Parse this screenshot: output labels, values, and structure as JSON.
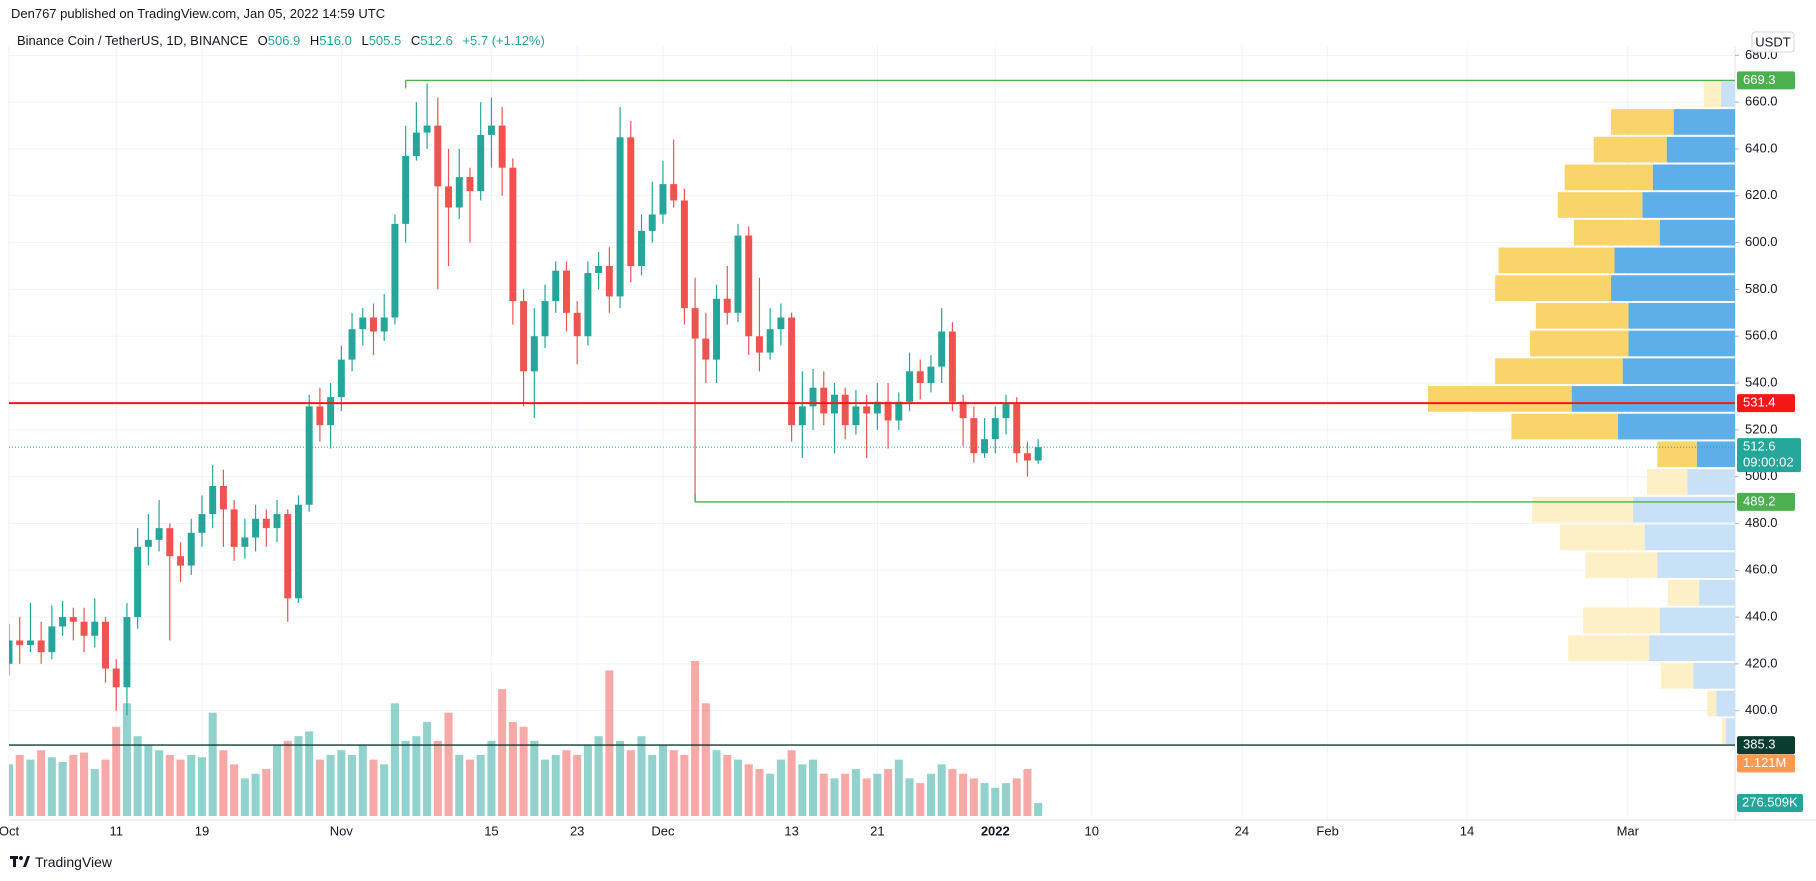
{
  "header": {
    "published": "Den767 published on TradingView.com, Jan 05, 2022 14:59 UTC"
  },
  "legend": {
    "symbol": "Binance Coin / TetherUS, 1D, BINANCE",
    "fields": [
      {
        "key": "O",
        "value": "506.9"
      },
      {
        "key": "H",
        "value": "516.0"
      },
      {
        "key": "L",
        "value": "505.5"
      },
      {
        "key": "C",
        "value": "512.6"
      }
    ],
    "change": "+5.7 (+1.12%)"
  },
  "footer": {
    "brand": "TradingView"
  },
  "chart_data": {
    "type": "candlestick",
    "currency": "USDT",
    "countdown": "09:00:02",
    "up_color": "#26a69a",
    "down_color": "#ef5350",
    "volume_up_color": "rgba(38,166,154,0.5)",
    "volume_down_color": "rgba(239,83,80,0.5)",
    "grid": true,
    "xlim": [
      "2021-10-01",
      "2022-03-11"
    ],
    "xticks": [
      {
        "value": "2021-10-01",
        "label": "Oct"
      },
      {
        "value": "2021-10-11",
        "label": "11"
      },
      {
        "value": "2021-10-19",
        "label": "19"
      },
      {
        "value": "2021-11-01",
        "label": "Nov"
      },
      {
        "value": "2021-11-15",
        "label": "15"
      },
      {
        "value": "2021-11-23",
        "label": "23"
      },
      {
        "value": "2021-12-01",
        "label": "Dec"
      },
      {
        "value": "2021-12-13",
        "label": "13"
      },
      {
        "value": "2021-12-21",
        "label": "21"
      },
      {
        "value": "2022-01-01",
        "label": "2022"
      },
      {
        "value": "2022-01-10",
        "label": "10"
      },
      {
        "value": "2022-01-24",
        "label": "24"
      },
      {
        "value": "2022-02-01",
        "label": "Feb"
      },
      {
        "value": "2022-02-14",
        "label": "14"
      },
      {
        "value": "2022-03-01",
        "label": "Mar"
      }
    ],
    "ylim": [
      355,
      684
    ],
    "yticks": [
      {
        "value": 680,
        "label": "680.0"
      },
      {
        "value": 660,
        "label": "660.0"
      },
      {
        "value": 640,
        "label": "640.0"
      },
      {
        "value": 620,
        "label": "620.0"
      },
      {
        "value": 600,
        "label": "600.0"
      },
      {
        "value": 580,
        "label": "580.0"
      },
      {
        "value": 560,
        "label": "560.0"
      },
      {
        "value": 540,
        "label": "540.0"
      },
      {
        "value": 520,
        "label": "520.0"
      },
      {
        "value": 500,
        "label": "500.0"
      },
      {
        "value": 480,
        "label": "480.0"
      },
      {
        "value": 460,
        "label": "460.0"
      },
      {
        "value": 440,
        "label": "440.0"
      },
      {
        "value": 420,
        "label": "420.0"
      },
      {
        "value": 400,
        "label": "400.0"
      }
    ],
    "x": [
      "2021-10-01",
      "2021-10-02",
      "2021-10-03",
      "2021-10-04",
      "2021-10-05",
      "2021-10-06",
      "2021-10-07",
      "2021-10-08",
      "2021-10-09",
      "2021-10-10",
      "2021-10-11",
      "2021-10-12",
      "2021-10-13",
      "2021-10-14",
      "2021-10-15",
      "2021-10-16",
      "2021-10-17",
      "2021-10-18",
      "2021-10-19",
      "2021-10-20",
      "2021-10-21",
      "2021-10-22",
      "2021-10-23",
      "2021-10-24",
      "2021-10-25",
      "2021-10-26",
      "2021-10-27",
      "2021-10-28",
      "2021-10-29",
      "2021-10-30",
      "2021-10-31",
      "2021-11-01",
      "2021-11-02",
      "2021-11-03",
      "2021-11-04",
      "2021-11-05",
      "2021-11-06",
      "2021-11-07",
      "2021-11-08",
      "2021-11-09",
      "2021-11-10",
      "2021-11-11",
      "2021-11-12",
      "2021-11-13",
      "2021-11-14",
      "2021-11-15",
      "2021-11-16",
      "2021-11-17",
      "2021-11-18",
      "2021-11-19",
      "2021-11-20",
      "2021-11-21",
      "2021-11-22",
      "2021-11-23",
      "2021-11-24",
      "2021-11-25",
      "2021-11-26",
      "2021-11-27",
      "2021-11-28",
      "2021-11-29",
      "2021-11-30",
      "2021-12-01",
      "2021-12-02",
      "2021-12-03",
      "2021-12-04",
      "2021-12-05",
      "2021-12-06",
      "2021-12-07",
      "2021-12-08",
      "2021-12-09",
      "2021-12-10",
      "2021-12-11",
      "2021-12-12",
      "2021-12-13",
      "2021-12-14",
      "2021-12-15",
      "2021-12-16",
      "2021-12-17",
      "2021-12-18",
      "2021-12-19",
      "2021-12-20",
      "2021-12-21",
      "2021-12-22",
      "2021-12-23",
      "2021-12-24",
      "2021-12-25",
      "2021-12-26",
      "2021-12-27",
      "2021-12-28",
      "2021-12-29",
      "2021-12-30",
      "2021-12-31",
      "2022-01-01",
      "2022-01-02",
      "2022-01-03",
      "2022-01-04",
      "2022-01-05"
    ],
    "open": [
      420,
      430,
      428,
      430,
      425,
      436,
      440,
      438,
      432,
      438,
      418,
      410,
      440,
      470,
      473,
      478,
      466,
      462,
      476,
      484,
      496,
      486,
      470,
      474,
      482,
      478,
      484,
      448,
      488,
      530,
      522,
      534,
      550,
      563,
      568,
      562,
      568,
      608,
      637,
      647,
      650,
      624,
      615,
      628,
      622,
      646,
      650,
      632,
      575,
      545,
      560,
      575,
      588,
      570,
      560,
      587,
      590,
      577,
      645,
      590,
      605,
      612,
      625,
      618,
      572,
      559,
      550,
      576,
      570,
      603,
      560,
      553,
      563,
      568,
      522,
      530,
      538,
      527,
      535,
      522,
      530,
      527,
      532,
      524,
      532,
      545,
      540,
      547,
      562,
      532,
      525,
      510,
      516,
      525,
      531,
      510,
      506.9
    ],
    "high": [
      437,
      440,
      446,
      438,
      445,
      447,
      444,
      444,
      448,
      440,
      422,
      446,
      478,
      484,
      490,
      480,
      472,
      482,
      492,
      505,
      503,
      490,
      482,
      488,
      486,
      490,
      486,
      492,
      535,
      538,
      540,
      556,
      570,
      572,
      574,
      578,
      612,
      650,
      660,
      668,
      662,
      640,
      640,
      632,
      660,
      662,
      658,
      636,
      580,
      572,
      582,
      592,
      592,
      575,
      592,
      596,
      598,
      658,
      652,
      612,
      626,
      635,
      644,
      623,
      585,
      570,
      582,
      590,
      608,
      607,
      585,
      572,
      574,
      570,
      545,
      546,
      545,
      540,
      538,
      537,
      535,
      540,
      540,
      536,
      553,
      550,
      552,
      572,
      566,
      535,
      530,
      525,
      530,
      535,
      534,
      515,
      516
    ],
    "low": [
      415,
      420,
      425,
      420,
      422,
      432,
      430,
      425,
      427,
      412,
      400,
      398,
      435,
      462,
      468,
      430,
      455,
      458,
      470,
      478,
      470,
      464,
      465,
      468,
      470,
      472,
      438,
      446,
      485,
      515,
      512,
      528,
      545,
      556,
      552,
      558,
      565,
      600,
      635,
      640,
      580,
      590,
      610,
      600,
      618,
      632,
      620,
      565,
      530,
      525,
      555,
      570,
      562,
      548,
      556,
      580,
      570,
      572,
      583,
      586,
      600,
      608,
      615,
      565,
      489.2,
      540,
      540,
      565,
      566,
      552,
      545,
      550,
      556,
      515,
      508,
      520,
      522,
      510,
      516,
      518,
      508,
      520,
      512,
      520,
      528,
      533,
      536,
      540,
      528,
      513,
      506,
      508,
      510,
      518,
      506,
      500,
      505.5
    ],
    "close": [
      430,
      428,
      430,
      425,
      436,
      440,
      438,
      432,
      438,
      418,
      410,
      440,
      470,
      473,
      478,
      466,
      462,
      476,
      484,
      496,
      486,
      470,
      474,
      482,
      478,
      484,
      448,
      488,
      530,
      522,
      534,
      550,
      563,
      568,
      562,
      568,
      608,
      637,
      647,
      650,
      624,
      615,
      628,
      622,
      646,
      650,
      632,
      575,
      545,
      560,
      575,
      588,
      570,
      560,
      587,
      590,
      577,
      645,
      590,
      605,
      612,
      625,
      618,
      572,
      559,
      550,
      576,
      570,
      603,
      560,
      553,
      563,
      568,
      522,
      530,
      538,
      527,
      535,
      522,
      530,
      527,
      532,
      524,
      532,
      545,
      540,
      547,
      562,
      532,
      525,
      510,
      516,
      525,
      531,
      510,
      506.9,
      512.6
    ],
    "volume": [
      1100000,
      1300000,
      1200000,
      1400000,
      1250000,
      1150000,
      1300000,
      1350000,
      1000000,
      1200000,
      1900000,
      2400000,
      1700000,
      1500000,
      1400000,
      1300000,
      1200000,
      1300000,
      1250000,
      2200000,
      1400000,
      1100000,
      800000,
      900000,
      1000000,
      1500000,
      1600000,
      1700000,
      1800000,
      1200000,
      1300000,
      1400000,
      1300000,
      1500000,
      1200000,
      1100000,
      2400000,
      1600000,
      1700000,
      2000000,
      1600000,
      2200000,
      1300000,
      1200000,
      1300000,
      1600000,
      2700000,
      2000000,
      1900000,
      1600000,
      1200000,
      1300000,
      1400000,
      1300000,
      1500000,
      1700000,
      3100000,
      1600000,
      1400000,
      1700000,
      1300000,
      1500000,
      1400000,
      1300000,
      3300000,
      2400000,
      1400000,
      1300000,
      1200000,
      1100000,
      1000000,
      900000,
      1200000,
      1400000,
      1100000,
      1200000,
      900000,
      800000,
      900000,
      1000000,
      800000,
      900000,
      1000000,
      1200000,
      800000,
      700000,
      900000,
      1100000,
      1000000,
      900000,
      800000,
      700000,
      600000,
      700000,
      800000,
      1000000,
      276509
    ],
    "last_volume_label": "276.509K",
    "volume_ma": {
      "value": 1121000,
      "label": "1.121M",
      "color": "#ff9850"
    },
    "levels": [
      {
        "value": 669.3,
        "color": "#4caf50",
        "start": "2021-11-07"
      },
      {
        "value": 531.4,
        "color": "#f21818"
      },
      {
        "value": 489.2,
        "color": "#4caf50",
        "start": "2021-12-04"
      },
      {
        "value": 385.3,
        "color": "#0b3d2e"
      }
    ],
    "profile": {
      "range": [
        385.3,
        669.3
      ],
      "up": [
        8,
        16,
        36,
        74,
        65,
        31,
        67,
        78,
        88,
        41,
        33,
        101,
        141,
        97,
        92,
        92,
        107,
        104,
        65,
        80,
        71,
        59,
        53,
        12
      ],
      "down": [
        3,
        8,
        28,
        70,
        66,
        27,
        62,
        73,
        87,
        35,
        34,
        92,
        124,
        110,
        85,
        80,
        100,
        100,
        74,
        73,
        76,
        63,
        54,
        15
      ],
      "value_area": [
        false,
        false,
        false,
        false,
        false,
        false,
        false,
        false,
        false,
        false,
        true,
        true,
        true,
        true,
        true,
        true,
        true,
        true,
        true,
        true,
        true,
        true,
        true,
        false
      ],
      "up_color": "#5eaee9",
      "down_color": "#f9d46b",
      "up_color_light": "#c8e1f7",
      "down_color_light": "#fdefc6"
    }
  }
}
